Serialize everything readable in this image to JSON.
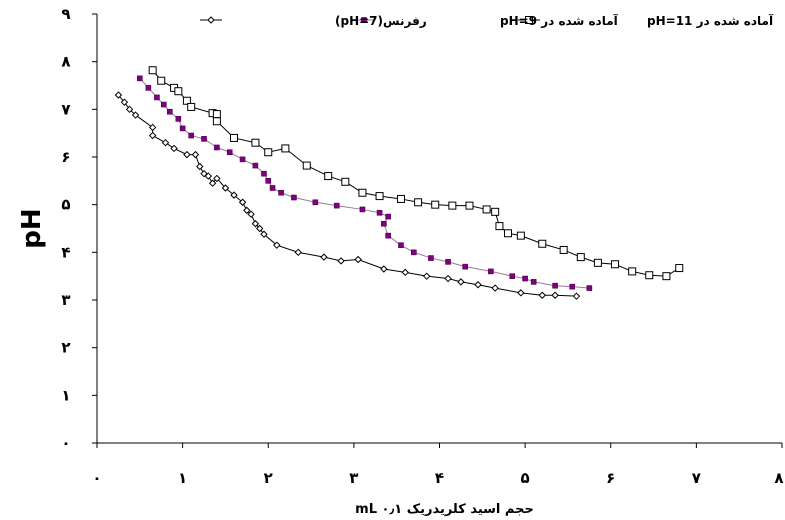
{
  "chart_data": {
    "type": "line",
    "xlabel": "حجم اسید کلریدریک mL ۰٫۱",
    "ylabel": "pH",
    "xlim": [
      0,
      8
    ],
    "ylim": [
      0,
      9
    ],
    "x_ticks": [
      0,
      1,
      2,
      3,
      4,
      5,
      6,
      7,
      8
    ],
    "x_tick_labels": [
      "۰",
      "۱",
      "۲",
      "۳",
      "۴",
      "۵",
      "۶",
      "۷",
      "۸"
    ],
    "y_ticks": [
      0,
      1,
      2,
      3,
      4,
      5,
      6,
      7,
      8,
      9
    ],
    "y_tick_labels": [
      "۰",
      "۱",
      "۲",
      "۳",
      "۴",
      "۵",
      "۶",
      "۷",
      "۸",
      "۹"
    ],
    "grid": false,
    "legend_position": "top",
    "series": [
      {
        "name": "آماده شده در pH=11",
        "marker": "square-open",
        "color": "#000000",
        "points": [
          [
            0.65,
            7.82
          ],
          [
            0.75,
            7.6
          ],
          [
            0.9,
            7.45
          ],
          [
            0.95,
            7.38
          ],
          [
            1.05,
            7.18
          ],
          [
            1.1,
            7.05
          ],
          [
            1.35,
            6.92
          ],
          [
            1.4,
            6.9
          ],
          [
            1.4,
            6.75
          ],
          [
            1.6,
            6.4
          ],
          [
            1.85,
            6.3
          ],
          [
            2.0,
            6.1
          ],
          [
            2.2,
            6.18
          ],
          [
            2.45,
            5.82
          ],
          [
            2.7,
            5.6
          ],
          [
            2.9,
            5.48
          ],
          [
            3.1,
            5.25
          ],
          [
            3.3,
            5.18
          ],
          [
            3.55,
            5.12
          ],
          [
            3.75,
            5.05
          ],
          [
            3.95,
            5.0
          ],
          [
            4.15,
            4.98
          ],
          [
            4.35,
            4.98
          ],
          [
            4.55,
            4.9
          ],
          [
            4.65,
            4.85
          ],
          [
            4.7,
            4.55
          ],
          [
            4.8,
            4.4
          ],
          [
            4.95,
            4.35
          ],
          [
            5.2,
            4.18
          ],
          [
            5.45,
            4.05
          ],
          [
            5.65,
            3.9
          ],
          [
            5.85,
            3.78
          ],
          [
            6.05,
            3.75
          ],
          [
            6.25,
            3.6
          ],
          [
            6.45,
            3.52
          ],
          [
            6.65,
            3.5
          ],
          [
            6.8,
            3.67
          ]
        ]
      },
      {
        "name": "آماده شده در pH=9",
        "marker": "square-filled",
        "color": "#800080",
        "line_color": "#9a7a9a",
        "points": [
          [
            0.5,
            7.65
          ],
          [
            0.6,
            7.45
          ],
          [
            0.7,
            7.25
          ],
          [
            0.78,
            7.1
          ],
          [
            0.85,
            6.95
          ],
          [
            0.95,
            6.8
          ],
          [
            1.0,
            6.6
          ],
          [
            1.1,
            6.45
          ],
          [
            1.25,
            6.38
          ],
          [
            1.4,
            6.2
          ],
          [
            1.55,
            6.1
          ],
          [
            1.7,
            5.95
          ],
          [
            1.85,
            5.82
          ],
          [
            1.95,
            5.65
          ],
          [
            2.0,
            5.5
          ],
          [
            2.05,
            5.35
          ],
          [
            2.15,
            5.25
          ],
          [
            2.3,
            5.15
          ],
          [
            2.55,
            5.05
          ],
          [
            2.8,
            4.98
          ],
          [
            3.1,
            4.9
          ],
          [
            3.3,
            4.83
          ],
          [
            3.4,
            4.75
          ],
          [
            3.35,
            4.6
          ],
          [
            3.4,
            4.35
          ],
          [
            3.55,
            4.15
          ],
          [
            3.7,
            4.0
          ],
          [
            3.9,
            3.88
          ],
          [
            4.1,
            3.8
          ],
          [
            4.3,
            3.7
          ],
          [
            4.6,
            3.6
          ],
          [
            4.85,
            3.5
          ],
          [
            5.0,
            3.45
          ],
          [
            5.1,
            3.38
          ],
          [
            5.35,
            3.3
          ],
          [
            5.55,
            3.28
          ],
          [
            5.75,
            3.25
          ]
        ]
      },
      {
        "name": "رفرنس(pH=7)",
        "marker": "diamond-open",
        "color": "#000000",
        "points": [
          [
            0.25,
            7.3
          ],
          [
            0.32,
            7.15
          ],
          [
            0.38,
            7.0
          ],
          [
            0.45,
            6.88
          ],
          [
            0.65,
            6.62
          ],
          [
            0.65,
            6.45
          ],
          [
            0.8,
            6.3
          ],
          [
            0.9,
            6.18
          ],
          [
            1.05,
            6.05
          ],
          [
            1.15,
            6.05
          ],
          [
            1.2,
            5.8
          ],
          [
            1.25,
            5.65
          ],
          [
            1.3,
            5.6
          ],
          [
            1.35,
            5.45
          ],
          [
            1.4,
            5.55
          ],
          [
            1.5,
            5.35
          ],
          [
            1.6,
            5.2
          ],
          [
            1.7,
            5.05
          ],
          [
            1.75,
            4.88
          ],
          [
            1.8,
            4.8
          ],
          [
            1.85,
            4.6
          ],
          [
            1.9,
            4.5
          ],
          [
            1.95,
            4.38
          ],
          [
            2.1,
            4.15
          ],
          [
            2.35,
            4.0
          ],
          [
            2.65,
            3.9
          ],
          [
            2.85,
            3.82
          ],
          [
            3.05,
            3.85
          ],
          [
            3.35,
            3.65
          ],
          [
            3.6,
            3.58
          ],
          [
            3.85,
            3.5
          ],
          [
            4.1,
            3.45
          ],
          [
            4.25,
            3.38
          ],
          [
            4.45,
            3.32
          ],
          [
            4.65,
            3.25
          ],
          [
            4.95,
            3.15
          ],
          [
            5.2,
            3.1
          ],
          [
            5.35,
            3.1
          ],
          [
            5.6,
            3.08
          ]
        ]
      }
    ]
  }
}
